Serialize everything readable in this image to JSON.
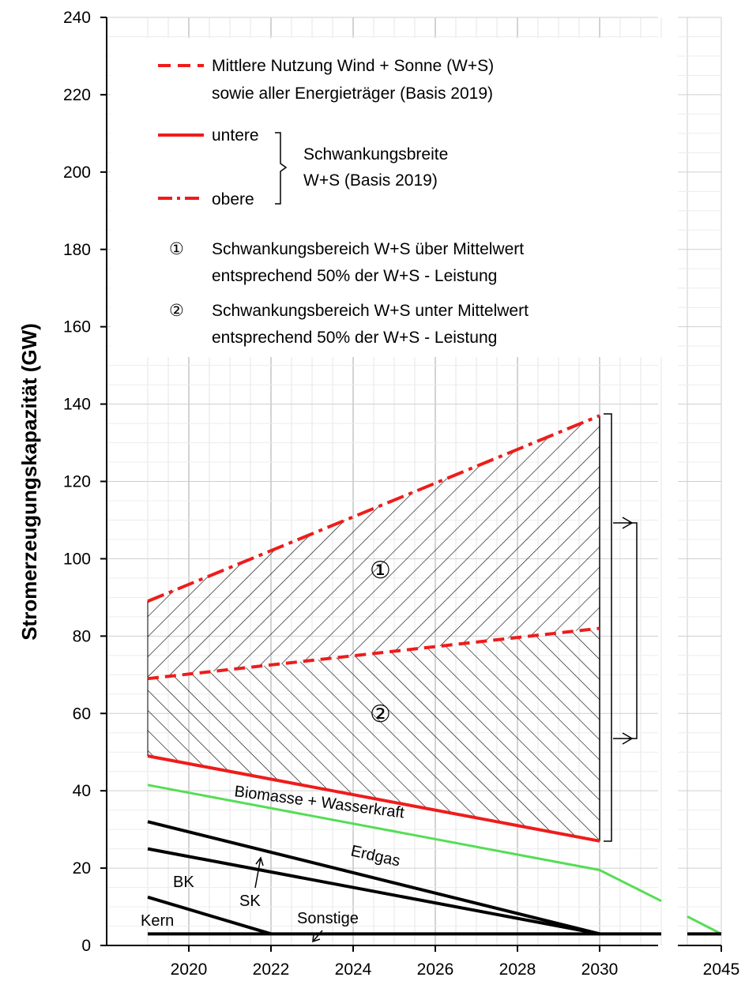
{
  "chart_data": {
    "type": "line",
    "ylabel": "Stromerzeugungskapazität (GW)",
    "ylim": [
      0,
      240
    ],
    "y_ticks": [
      0,
      20,
      40,
      60,
      80,
      100,
      120,
      140,
      160,
      180,
      200,
      220,
      240
    ],
    "x_ticks": [
      "2020",
      "2022",
      "2024",
      "2026",
      "2028",
      "2030",
      "2045"
    ],
    "grid": true,
    "legend_position": "top",
    "colors": {
      "red": "#ee1c1c",
      "green": "#55dd55",
      "black": "#000000"
    },
    "legend": {
      "mean": [
        "Mittlere Nutzung Wind + Sonne (W+S)",
        "sowie aller Energieträger (Basis 2019)"
      ],
      "lower": "untere",
      "upper": "obere",
      "band": [
        "Schwankungsbreite",
        "W+S (Basis 2019)"
      ],
      "region1": [
        "①",
        "Schwankungsbereich  W+S über Mittelwert",
        "entsprechend  50% der W+S - Leistung"
      ],
      "region2": [
        "②",
        "Schwankungsbereich  W+S unter Mittelwert",
        "entsprechend  50% der W+S - Leistung"
      ]
    },
    "series": [
      {
        "key": "upper",
        "color": "#ee1c1c",
        "style": "dashdot",
        "points": [
          [
            2019,
            89
          ],
          [
            2030,
            137
          ]
        ]
      },
      {
        "key": "mean",
        "color": "#ee1c1c",
        "style": "dashed",
        "points": [
          [
            2019,
            69
          ],
          [
            2030,
            82
          ]
        ]
      },
      {
        "key": "lower",
        "color": "#ee1c1c",
        "style": "solid",
        "points": [
          [
            2019,
            49
          ],
          [
            2030,
            27
          ]
        ]
      },
      {
        "name": "Biomasse + Wasserkraft",
        "color": "#55dd55",
        "style": "solid",
        "points": [
          [
            2019,
            41.5
          ],
          [
            2030,
            19.5
          ],
          [
            2031.5,
            11.5
          ]
        ],
        "points_tail": [
          [
            2044.3,
            7.5
          ],
          [
            2045,
            3
          ]
        ]
      },
      {
        "name": "Erdgas",
        "color": "#000000",
        "style": "solid",
        "points": [
          [
            2019,
            32
          ],
          [
            2030,
            3
          ]
        ]
      },
      {
        "name": "SK",
        "color": "#000000",
        "style": "solid",
        "points": [
          [
            2019,
            25
          ],
          [
            2030,
            3
          ]
        ]
      },
      {
        "name": "BK",
        "color": "#000000",
        "style": "solid",
        "points": [
          [
            2019,
            12.5
          ],
          [
            2022,
            3
          ]
        ]
      },
      {
        "name": "Kern",
        "color": "#000000",
        "style": "solid",
        "points": [
          [
            2019,
            3
          ],
          [
            2031.5,
            3
          ]
        ],
        "points_tail": [
          [
            2044.3,
            3
          ],
          [
            2045,
            3
          ]
        ]
      }
    ],
    "annotations": {
      "region1": "①",
      "region2": "②",
      "biomasse": "Biomasse + Wasserkraft",
      "erdgas": "Erdgas",
      "sk": "SK",
      "bk": "BK",
      "kern": "Kern",
      "sonstige": "Sonstige"
    }
  }
}
